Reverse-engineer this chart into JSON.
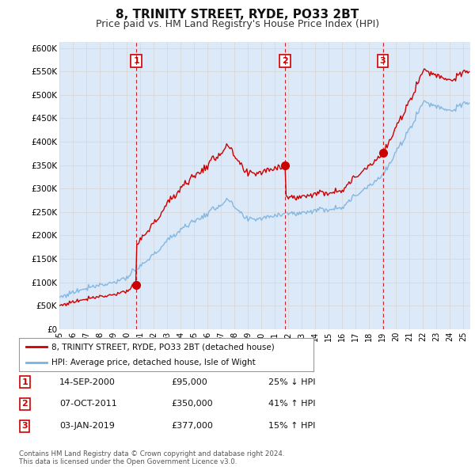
{
  "title": "8, TRINITY STREET, RYDE, PO33 2BT",
  "subtitle": "Price paid vs. HM Land Registry's House Price Index (HPI)",
  "background_color": "#ffffff",
  "plot_bg_color": "#dce9f8",
  "ylim": [
    0,
    612500
  ],
  "yticks": [
    0,
    50000,
    100000,
    150000,
    200000,
    250000,
    300000,
    350000,
    400000,
    450000,
    500000,
    550000,
    600000
  ],
  "ytick_labels": [
    "£0",
    "£50K",
    "£100K",
    "£150K",
    "£200K",
    "£250K",
    "£300K",
    "£350K",
    "£400K",
    "£450K",
    "£500K",
    "£550K",
    "£600K"
  ],
  "xlim_start": 1995.0,
  "xlim_end": 2025.5,
  "purchases": [
    {
      "date": 2000.71,
      "price": 95000,
      "label": "1"
    },
    {
      "date": 2011.77,
      "price": 350000,
      "label": "2"
    },
    {
      "date": 2019.01,
      "price": 377000,
      "label": "3"
    }
  ],
  "legend_property": "8, TRINITY STREET, RYDE, PO33 2BT (detached house)",
  "legend_hpi": "HPI: Average price, detached house, Isle of Wight",
  "table_rows": [
    {
      "num": "1",
      "date": "14-SEP-2000",
      "price": "£95,000",
      "pct": "25% ↓ HPI"
    },
    {
      "num": "2",
      "date": "07-OCT-2011",
      "price": "£350,000",
      "pct": "41% ↑ HPI"
    },
    {
      "num": "3",
      "date": "03-JAN-2019",
      "price": "£377,000",
      "pct": "15% ↑ HPI"
    }
  ],
  "footer": "Contains HM Land Registry data © Crown copyright and database right 2024.\nThis data is licensed under the Open Government Licence v3.0.",
  "hpi_color": "#7ab3e0",
  "property_color": "#cc0000",
  "vline_color": "#cc0000",
  "grid_color": "#e8e8e8",
  "title_fontsize": 11,
  "subtitle_fontsize": 9
}
